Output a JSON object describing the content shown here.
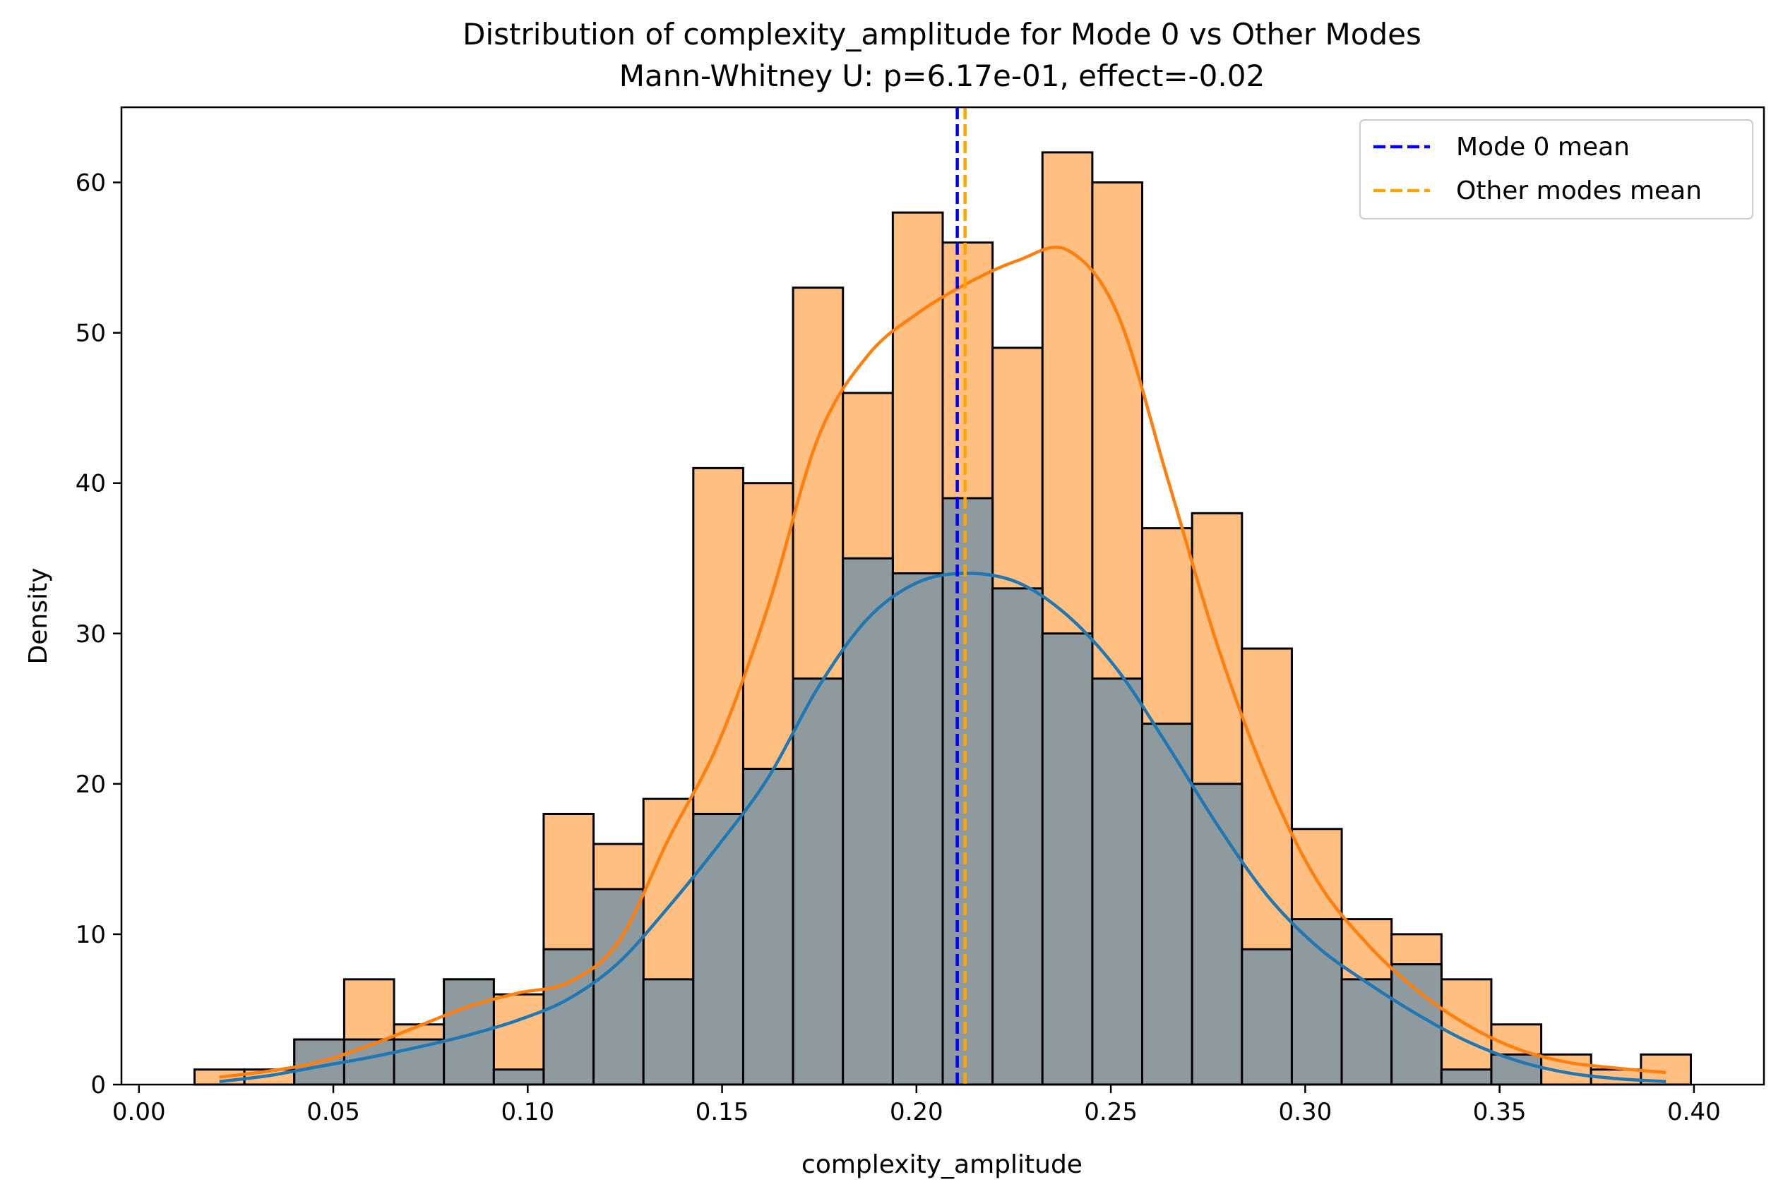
{
  "chart_data": {
    "type": "histogram",
    "title": "Distribution of complexity_amplitude for Mode 0 vs Other Modes",
    "subtitle": "Mann-Whitney U: p=6.17e-01, effect=-0.02",
    "xlabel": "complexity_amplitude",
    "ylabel": "Density",
    "xlim": [
      -0.0045,
      0.418
    ],
    "ylim": [
      0,
      65
    ],
    "xticks": [
      0.0,
      0.05,
      0.1,
      0.15,
      0.2,
      0.25,
      0.3,
      0.35,
      0.4
    ],
    "xtick_labels": [
      "0.00",
      "0.05",
      "0.10",
      "0.15",
      "0.20",
      "0.25",
      "0.30",
      "0.35",
      "0.40"
    ],
    "yticks": [
      0,
      10,
      20,
      30,
      40,
      50,
      60
    ],
    "ytick_labels": [
      "0",
      "10",
      "20",
      "30",
      "40",
      "50",
      "60"
    ],
    "grid": false,
    "legend_position": "top-right",
    "bin_start": 0.0143,
    "bin_width": 0.01283,
    "series": [
      {
        "name": "Other modes",
        "color": "#ffbf80",
        "kde_color": "#ff7f0e",
        "values": [
          1,
          1,
          3,
          7,
          4,
          7,
          6,
          18,
          16,
          19,
          41,
          40,
          53,
          46,
          58,
          56,
          49,
          62,
          60,
          37,
          38,
          29,
          17,
          11,
          10,
          7,
          4,
          2,
          1,
          2
        ],
        "kde": [
          0.5,
          0.9,
          1.5,
          2.6,
          3.9,
          5.2,
          6.1,
          6.8,
          9.5,
          16.3,
          22.7,
          31.8,
          43.0,
          48.5,
          51.3,
          53.3,
          54.8,
          55.5,
          51.3,
          40.4,
          29.3,
          20.3,
          13.6,
          9.4,
          6.3,
          4.0,
          2.4,
          1.5,
          1.1,
          0.8
        ]
      },
      {
        "name": "Mode 0",
        "color": "#8e9a9e",
        "kde_color": "#1f77b4",
        "values": [
          0,
          0,
          3,
          3,
          3,
          7,
          1,
          9,
          13,
          7,
          18,
          21,
          27,
          35,
          34,
          39,
          33,
          30,
          27,
          24,
          20,
          9,
          11,
          7,
          8,
          1,
          2,
          0,
          0,
          0
        ],
        "kde": [
          0.2,
          0.6,
          1.2,
          1.8,
          2.5,
          3.3,
          4.3,
          5.7,
          8.1,
          11.8,
          15.9,
          20.4,
          26.4,
          31.0,
          33.4,
          34.0,
          33.4,
          31.2,
          27.6,
          22.6,
          17.3,
          12.6,
          9.2,
          6.8,
          4.7,
          2.9,
          1.6,
          0.8,
          0.4,
          0.2
        ]
      }
    ],
    "mean_lines": [
      {
        "label": "Mode 0 mean",
        "value": 0.2105,
        "color": "#0000ff"
      },
      {
        "label": "Other modes mean",
        "value": 0.2125,
        "color": "#ffa500"
      }
    ]
  }
}
